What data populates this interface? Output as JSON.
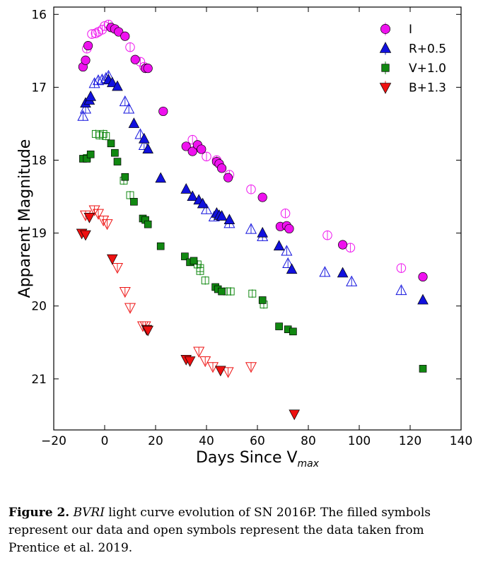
{
  "chart_data": {
    "type": "scatter",
    "title": "",
    "xlabel_main": "Days Since V",
    "xlabel_sub": "max",
    "ylabel": "Apparent Magnitude",
    "xlim": [
      -20,
      140
    ],
    "ylim": [
      21.7,
      15.9
    ],
    "y_inverted": true,
    "xticks": [
      -20,
      0,
      20,
      40,
      60,
      80,
      100,
      120,
      140
    ],
    "xtick_labels": [
      "−20",
      "0",
      "20",
      "40",
      "60",
      "80",
      "100",
      "120",
      "140"
    ],
    "yticks": [
      16,
      17,
      18,
      19,
      20,
      21
    ],
    "legend_position": "top-right",
    "grid": false,
    "series": [
      {
        "name": "I",
        "color": "#ee11ee",
        "marker": "circle",
        "filled": [
          [
            -8.5,
            16.72
          ],
          [
            -7.5,
            16.63
          ],
          [
            -6.5,
            16.43
          ],
          [
            2.5,
            16.18
          ],
          [
            4,
            16.2
          ],
          [
            5.5,
            16.24
          ],
          [
            8,
            16.3
          ],
          [
            12,
            16.62
          ],
          [
            16,
            16.74
          ],
          [
            17,
            16.74
          ],
          [
            23,
            17.33
          ],
          [
            32,
            17.81
          ],
          [
            34.5,
            17.88
          ],
          [
            36.5,
            17.79
          ],
          [
            38,
            17.85
          ],
          [
            44,
            18.02
          ],
          [
            45,
            18.05
          ],
          [
            46,
            18.11
          ],
          [
            48.5,
            18.24
          ],
          [
            62,
            18.51
          ],
          [
            69,
            18.91
          ],
          [
            71.5,
            18.9
          ],
          [
            72.5,
            18.94
          ],
          [
            93.5,
            19.16
          ],
          [
            125,
            19.6
          ]
        ],
        "open": [
          [
            -7,
            16.47
          ],
          [
            -5,
            16.27
          ],
          [
            -3.5,
            16.26
          ],
          [
            -2.5,
            16.24
          ],
          [
            -1,
            16.21
          ],
          [
            0,
            16.16
          ],
          [
            1.5,
            16.14
          ],
          [
            10,
            16.45
          ],
          [
            14,
            16.65
          ],
          [
            15.5,
            16.72
          ],
          [
            34.5,
            17.72
          ],
          [
            36.5,
            17.82
          ],
          [
            40,
            17.95
          ],
          [
            44,
            18.0
          ],
          [
            49,
            18.2
          ],
          [
            57.5,
            18.4
          ],
          [
            71,
            18.73
          ],
          [
            87.5,
            19.03
          ],
          [
            96.5,
            19.2
          ],
          [
            116.5,
            19.48
          ]
        ]
      },
      {
        "name": "R+0.5",
        "color": "#1111dd",
        "marker": "triangle-up",
        "filled": [
          [
            -7.5,
            17.22
          ],
          [
            -6,
            17.18
          ],
          [
            -5.5,
            17.13
          ],
          [
            1.5,
            16.9
          ],
          [
            3,
            16.94
          ],
          [
            5,
            16.99
          ],
          [
            11.5,
            17.5
          ],
          [
            15.5,
            17.71
          ],
          [
            17,
            17.85
          ],
          [
            22,
            18.25
          ],
          [
            32,
            18.4
          ],
          [
            34.5,
            18.5
          ],
          [
            37,
            18.55
          ],
          [
            38.5,
            18.6
          ],
          [
            44,
            18.73
          ],
          [
            45,
            18.76
          ],
          [
            46,
            18.77
          ],
          [
            49,
            18.82
          ],
          [
            62,
            19.0
          ],
          [
            68.5,
            19.18
          ],
          [
            73.5,
            19.5
          ],
          [
            93.5,
            19.55
          ],
          [
            125,
            19.92
          ]
        ],
        "open": [
          [
            -8.5,
            17.4
          ],
          [
            -7.5,
            17.3
          ],
          [
            -4,
            16.95
          ],
          [
            -2.5,
            16.91
          ],
          [
            -1,
            16.9
          ],
          [
            0.5,
            16.88
          ],
          [
            1.5,
            16.85
          ],
          [
            8,
            17.2
          ],
          [
            9.5,
            17.3
          ],
          [
            14,
            17.65
          ],
          [
            15.5,
            17.8
          ],
          [
            40,
            18.68
          ],
          [
            43,
            18.78
          ],
          [
            49,
            18.87
          ],
          [
            57.5,
            18.95
          ],
          [
            62,
            19.05
          ],
          [
            71.5,
            19.25
          ],
          [
            72,
            19.42
          ],
          [
            86.5,
            19.54
          ],
          [
            97,
            19.67
          ],
          [
            116.5,
            19.79
          ]
        ]
      },
      {
        "name": "V+1.0",
        "color": "#118811",
        "marker": "square",
        "filled": [
          [
            -8.5,
            17.98
          ],
          [
            -7,
            17.98
          ],
          [
            -5.5,
            17.92
          ],
          [
            2.5,
            17.77
          ],
          [
            4,
            17.9
          ],
          [
            5,
            18.02
          ],
          [
            8,
            18.23
          ],
          [
            11.5,
            18.57
          ],
          [
            15,
            18.8
          ],
          [
            16,
            18.82
          ],
          [
            17,
            18.88
          ],
          [
            22,
            19.18
          ],
          [
            31.5,
            19.32
          ],
          [
            33.5,
            19.4
          ],
          [
            35,
            19.38
          ],
          [
            43.5,
            19.74
          ],
          [
            44.5,
            19.77
          ],
          [
            46,
            19.8
          ],
          [
            62,
            19.92
          ],
          [
            68.5,
            20.28
          ],
          [
            72,
            20.32
          ],
          [
            74,
            20.35
          ],
          [
            125,
            20.86
          ]
        ],
        "open": [
          [
            -7,
            17.97
          ],
          [
            -3.5,
            17.64
          ],
          [
            -2,
            17.66
          ],
          [
            -0.5,
            17.64
          ],
          [
            0.5,
            17.67
          ],
          [
            7.5,
            18.28
          ],
          [
            10,
            18.48
          ],
          [
            36.5,
            19.43
          ],
          [
            37.5,
            19.48
          ],
          [
            37.5,
            19.52
          ],
          [
            39.5,
            19.65
          ],
          [
            48,
            19.8
          ],
          [
            49.5,
            19.8
          ],
          [
            58,
            19.83
          ],
          [
            62.5,
            19.98
          ]
        ]
      },
      {
        "name": "B+1.3",
        "color": "#ee1111",
        "marker": "triangle-down",
        "filled": [
          [
            -9,
            19.0
          ],
          [
            -7.5,
            19.02
          ],
          [
            -6,
            18.78
          ],
          [
            3,
            19.35
          ],
          [
            16.5,
            20.32
          ],
          [
            17,
            20.33
          ],
          [
            32,
            20.73
          ],
          [
            33.5,
            20.75
          ],
          [
            45.5,
            20.88
          ],
          [
            74.5,
            21.48
          ]
        ],
        "open": [
          [
            -7.5,
            18.75
          ],
          [
            -4,
            18.68
          ],
          [
            -2.5,
            18.73
          ],
          [
            -0.5,
            18.82
          ],
          [
            1,
            18.87
          ],
          [
            5,
            19.47
          ],
          [
            8,
            19.8
          ],
          [
            10,
            20.02
          ],
          [
            15,
            20.27
          ],
          [
            16,
            20.27
          ],
          [
            37,
            20.62
          ],
          [
            39.5,
            20.75
          ],
          [
            42.5,
            20.83
          ],
          [
            48.5,
            20.9
          ],
          [
            57.5,
            20.83
          ]
        ]
      }
    ]
  },
  "caption": {
    "label": "Figure 2.",
    "italic_part": "BVRI",
    "text": " light curve evolution of SN 2016P. The filled symbols represent our data and open symbols represent the data taken from Prentice et al. 2019."
  }
}
